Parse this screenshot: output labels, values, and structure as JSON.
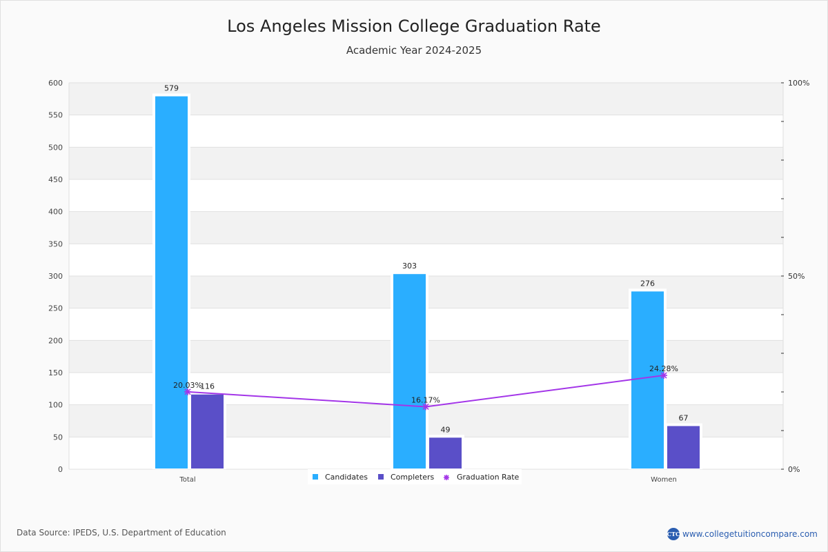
{
  "header": {
    "title": "Los Angeles Mission College Graduation Rate",
    "subtitle": "Academic Year 2024-2025"
  },
  "footer": {
    "source": "Data Source: IPEDS, U.S. Department of Education",
    "site": "www.collegetuitioncompare.com",
    "logo_text": "CTC"
  },
  "colors": {
    "candidates": "#2aaeff",
    "completers": "#5a4fc8",
    "rate": "#a335e8"
  },
  "chart_data": {
    "type": "bar",
    "title": "Los Angeles Mission College Graduation Rate",
    "subtitle": "Academic Year 2024-2025",
    "categories": [
      "Total",
      "",
      "Women"
    ],
    "series": [
      {
        "name": "Candidates",
        "type": "bar",
        "axis": "left",
        "values": [
          579,
          303,
          276
        ]
      },
      {
        "name": "Completers",
        "type": "bar",
        "axis": "left",
        "values": [
          116,
          49,
          67
        ]
      },
      {
        "name": "Graduation Rate",
        "type": "line",
        "axis": "right",
        "values": [
          20.03,
          16.17,
          24.28
        ],
        "labels": [
          "20.03%",
          "16.17%",
          "24.28%"
        ]
      }
    ],
    "ylim": [
      0,
      600
    ],
    "yticks": [
      0,
      50,
      100,
      150,
      200,
      250,
      300,
      350,
      400,
      450,
      500,
      550,
      600
    ],
    "y2lim": [
      0,
      100
    ],
    "y2ticks_labeled": [
      "0%",
      "50%",
      "100%"
    ],
    "y2_minor_step": 10,
    "grid": true,
    "legend": "bottom-center"
  }
}
